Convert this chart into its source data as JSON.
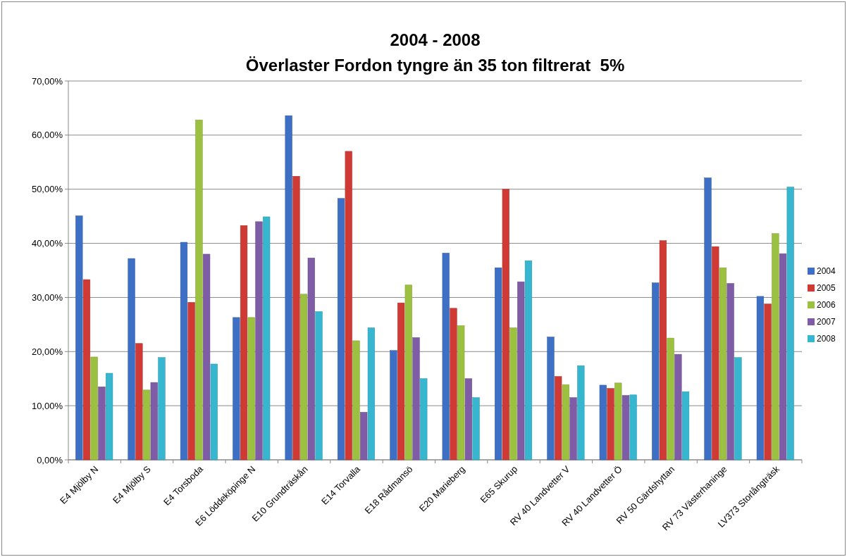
{
  "chart_data": {
    "type": "bar",
    "title": "2004 - 2008",
    "subtitle": "Överlaster Fordon tyngre än 35 ton filtrerat  5%",
    "categories": [
      "E4 Mjölby N",
      "E4 Mjölby S",
      "E4 Torsboda",
      "E6 Löddeköpinge N",
      "E10 Grundträskån",
      "E14 Torvalla",
      "E18 Rådmansö",
      "E20 Marieberg",
      "E65 Skurup",
      "RV 40 Landvetter V",
      "RV 40 Landvetter Ö",
      "RV 50 Gärdshyttan",
      "RV 73 Västerhaninge",
      "LV373 Storlångträsk"
    ],
    "series": [
      {
        "name": "2004",
        "color": "#3d6fc4",
        "values": [
          45.1,
          37.2,
          40.2,
          26.3,
          63.6,
          48.3,
          20.2,
          38.2,
          35.5,
          22.7,
          13.8,
          32.7,
          52.1,
          30.2
        ]
      },
      {
        "name": "2005",
        "color": "#d03a34",
        "values": [
          33.3,
          21.5,
          29.1,
          43.3,
          52.4,
          57.0,
          29.0,
          28.0,
          50.0,
          15.4,
          13.2,
          40.5,
          39.4,
          28.8
        ]
      },
      {
        "name": "2006",
        "color": "#9cc03f",
        "values": [
          19.0,
          12.9,
          62.8,
          26.3,
          30.6,
          22.0,
          32.3,
          24.8,
          24.4,
          13.9,
          14.2,
          22.5,
          35.5,
          41.8
        ]
      },
      {
        "name": "2007",
        "color": "#7e5ca6",
        "values": [
          13.5,
          14.3,
          38.0,
          44.0,
          37.3,
          8.8,
          22.6,
          15.0,
          32.9,
          11.5,
          11.9,
          19.5,
          32.6,
          38.1
        ]
      },
      {
        "name": "2008",
        "color": "#36b6cf",
        "values": [
          16.0,
          18.9,
          17.7,
          44.9,
          27.4,
          24.4,
          15.0,
          11.5,
          36.8,
          17.4,
          12.0,
          12.6,
          18.9,
          50.4
        ]
      }
    ],
    "ylim": [
      0,
      70
    ],
    "yticks": [
      {
        "value": 0,
        "label": "0,00%"
      },
      {
        "value": 10,
        "label": "10,00%"
      },
      {
        "value": 20,
        "label": "20,00%"
      },
      {
        "value": 30,
        "label": "30,00%"
      },
      {
        "value": 40,
        "label": "40,00%"
      },
      {
        "value": 50,
        "label": "50,00%"
      },
      {
        "value": 60,
        "label": "60,00%"
      },
      {
        "value": 70,
        "label": "70,00%"
      }
    ],
    "grid": "y",
    "legend": "right"
  }
}
